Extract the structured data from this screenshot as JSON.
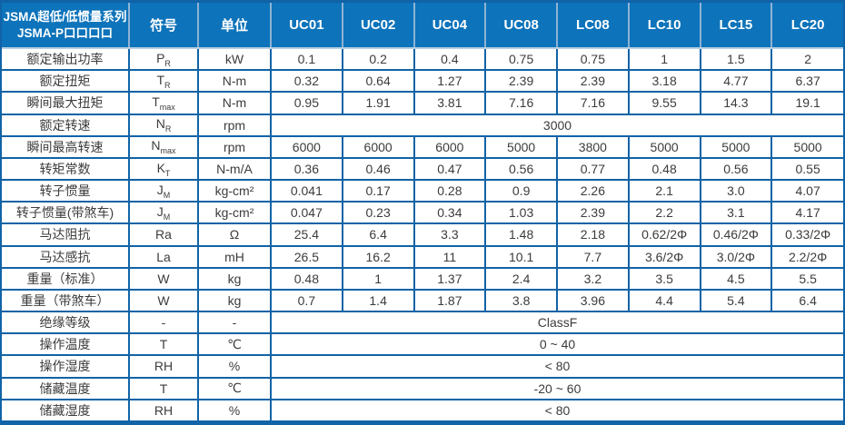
{
  "table": {
    "colors": {
      "border": "#1063a6",
      "header_background": "#0d73ba",
      "header_divider": "#8fb3d4",
      "header_text": "#ffffff",
      "body_text": "#3c3c3c"
    },
    "header": {
      "title_line1": "JSMA超低/低惯量系列",
      "title_line2": "JSMA-P口口口口",
      "symbol_col": "符号",
      "unit_col": "单位",
      "models": [
        "UC01",
        "UC02",
        "UC04",
        "UC08",
        "LC08",
        "LC10",
        "LC15",
        "LC20"
      ]
    },
    "rows": [
      {
        "label": "额定输出功率",
        "symbol": "P",
        "sub": "R",
        "unit": "kW",
        "values": [
          "0.1",
          "0.2",
          "0.4",
          "0.75",
          "0.75",
          "1",
          "1.5",
          "2"
        ]
      },
      {
        "label": "额定扭矩",
        "symbol": "T",
        "sub": "R",
        "unit": "N-m",
        "values": [
          "0.32",
          "0.64",
          "1.27",
          "2.39",
          "2.39",
          "3.18",
          "4.77",
          "6.37"
        ]
      },
      {
        "label": "瞬间最大扭矩",
        "symbol": "T",
        "sub": "max",
        "unit": "N-m",
        "values": [
          "0.95",
          "1.91",
          "3.81",
          "7.16",
          "7.16",
          "9.55",
          "14.3",
          "19.1"
        ]
      },
      {
        "label": "额定转速",
        "symbol": "N",
        "sub": "R",
        "unit": "rpm",
        "span": "3000"
      },
      {
        "label": "瞬间最高转速",
        "symbol": "N",
        "sub": "max",
        "unit": "rpm",
        "values": [
          "6000",
          "6000",
          "6000",
          "5000",
          "3800",
          "5000",
          "5000",
          "5000"
        ]
      },
      {
        "label": "转矩常数",
        "symbol": "K",
        "sub": "T",
        "unit": "N-m/A",
        "values": [
          "0.36",
          "0.46",
          "0.47",
          "0.56",
          "0.77",
          "0.48",
          "0.56",
          "0.55"
        ]
      },
      {
        "label": "转子惯量",
        "symbol": "J",
        "sub": "M",
        "unit": "kg-cm²",
        "values": [
          "0.041",
          "0.17",
          "0.28",
          "0.9",
          "2.26",
          "2.1",
          "3.0",
          "4.07"
        ]
      },
      {
        "label": "转子惯量(带煞车)",
        "symbol": "J",
        "sub": "M",
        "unit": "kg-cm²",
        "values": [
          "0.047",
          "0.23",
          "0.34",
          "1.03",
          "2.39",
          "2.2",
          "3.1",
          "4.17"
        ]
      },
      {
        "label": "马达阻抗",
        "symbol": "Ra",
        "unit": "Ω",
        "values": [
          "25.4",
          "6.4",
          "3.3",
          "1.48",
          "2.18",
          "0.62/2Φ",
          "0.46/2Φ",
          "0.33/2Φ"
        ]
      },
      {
        "label": "马达感抗",
        "symbol": "La",
        "unit": "mH",
        "values": [
          "26.5",
          "16.2",
          "11",
          "10.1",
          "7.7",
          "3.6/2Φ",
          "3.0/2Φ",
          "2.2/2Φ"
        ]
      },
      {
        "label": "重量（标准）",
        "symbol": "W",
        "unit": "kg",
        "values": [
          "0.48",
          "1",
          "1.37",
          "2.4",
          "3.2",
          "3.5",
          "4.5",
          "5.5"
        ]
      },
      {
        "label": "重量（带煞车）",
        "symbol": "W",
        "unit": "kg",
        "values": [
          "0.7",
          "1.4",
          "1.87",
          "3.8",
          "3.96",
          "4.4",
          "5.4",
          "6.4"
        ]
      },
      {
        "label": "绝缘等级",
        "symbol": "-",
        "unit": "-",
        "span": "ClassF"
      },
      {
        "label": "操作温度",
        "symbol": "T",
        "unit": "℃",
        "span": "0 ~ 40"
      },
      {
        "label": "操作湿度",
        "symbol": "RH",
        "unit": "%",
        "span": "< 80"
      },
      {
        "label": "储藏温度",
        "symbol": "T",
        "unit": "℃",
        "span": "-20 ~ 60"
      },
      {
        "label": "储藏湿度",
        "symbol": "RH",
        "unit": "%",
        "span": "< 80"
      }
    ]
  }
}
